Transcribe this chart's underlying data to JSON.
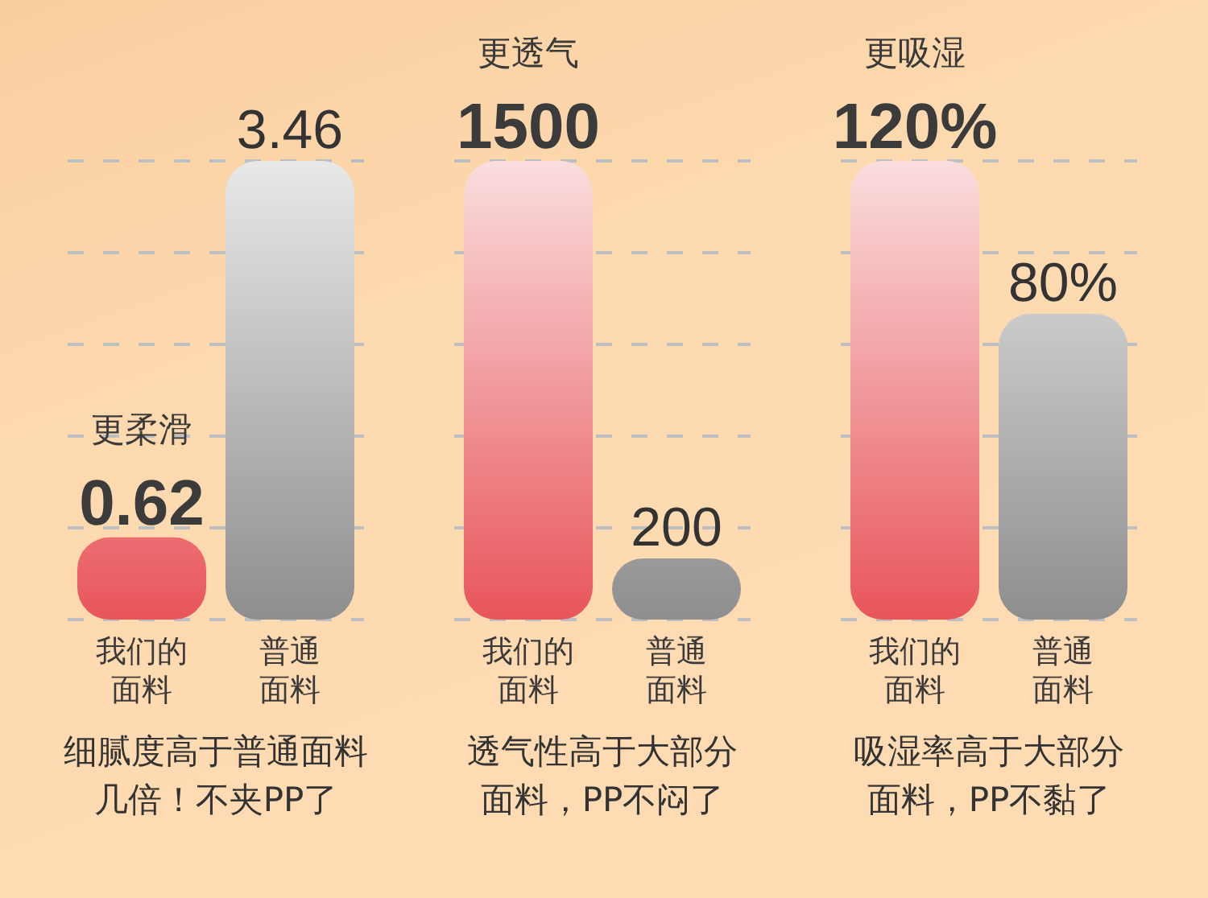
{
  "chart_data": [
    {
      "type": "bar",
      "categories": [
        "我们的面料",
        "普通面料"
      ],
      "values": [
        0.62,
        3.46
      ],
      "colors": [
        "#e8555a",
        "#8e8e8e"
      ],
      "data_labels": true,
      "annotations": [
        "更柔滑",
        "细腻度高于普通面料几倍！不夹PP了"
      ],
      "grid": "y",
      "tick_labels": "x"
    },
    {
      "type": "bar",
      "categories": [
        "我们的面料",
        "普通面料"
      ],
      "values": [
        1500,
        200
      ],
      "colors": [
        "#e8555a",
        "#8e8e8e"
      ],
      "data_labels": true,
      "annotations": [
        "更透气",
        "透气性高于大部分面料，PP不闷了"
      ],
      "grid": "y",
      "tick_labels": "x"
    },
    {
      "type": "bar",
      "categories": [
        "我们的面料",
        "普通面料"
      ],
      "values": [
        120,
        80
      ],
      "colors": [
        "#e8555a",
        "#8e8e8e"
      ],
      "value_labels": [
        "120%",
        "80%"
      ],
      "annotations": [
        "更吸湿",
        "吸湿率高于大部分面料，PP不黏了"
      ],
      "grid": "y",
      "tick_labels": "x"
    }
  ]
}
